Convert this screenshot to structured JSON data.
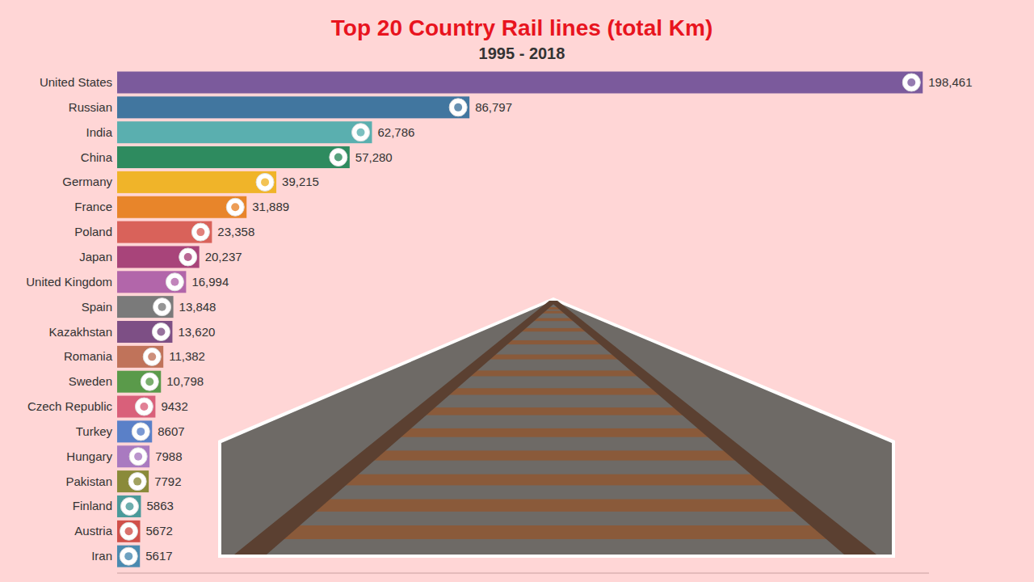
{
  "chart_data": {
    "type": "bar",
    "orientation": "horizontal",
    "title": "Top 20 Country Rail lines (total Km)",
    "subtitle": "1995 - 2018",
    "categories": [
      "United States",
      "Russian",
      "India",
      "China",
      "Germany",
      "France",
      "Poland",
      "Japan",
      "United Kingdom",
      "Spain",
      "Kazakhstan",
      "Romania",
      "Sweden",
      "Czech Republic",
      "Turkey",
      "Hungary",
      "Pakistan",
      "Finland",
      "Austria",
      "Iran"
    ],
    "values": [
      198461,
      86797,
      62786,
      57280,
      39215,
      31889,
      23358,
      20237,
      16994,
      13848,
      13620,
      11382,
      10798,
      9432,
      8607,
      7988,
      7792,
      5863,
      5672,
      5617
    ],
    "value_labels": [
      "198,461",
      "86,797",
      "62,786",
      "57,280",
      "39,215",
      "31,889",
      "23,358",
      "20,237",
      "16,994",
      "13,848",
      "13,620",
      "11,382",
      "10,798",
      "9432",
      "8607",
      "7988",
      "7792",
      "5863",
      "5672",
      "5617"
    ],
    "colors": [
      "#7b5a9c",
      "#41769f",
      "#5aafaf",
      "#2e8b5f",
      "#f0b429",
      "#e8852a",
      "#d9625a",
      "#a8447a",
      "#b266aa",
      "#7a7a7a",
      "#7d4f85",
      "#c0735a",
      "#5a9a4a",
      "#d9607a",
      "#5a80c8",
      "#a97ac0",
      "#8a8a3a",
      "#4a9a9a",
      "#d0504a",
      "#4a8ab0"
    ],
    "xlim": [
      0,
      200000
    ],
    "data_labels": true,
    "tick_labels": false,
    "grid": false
  }
}
